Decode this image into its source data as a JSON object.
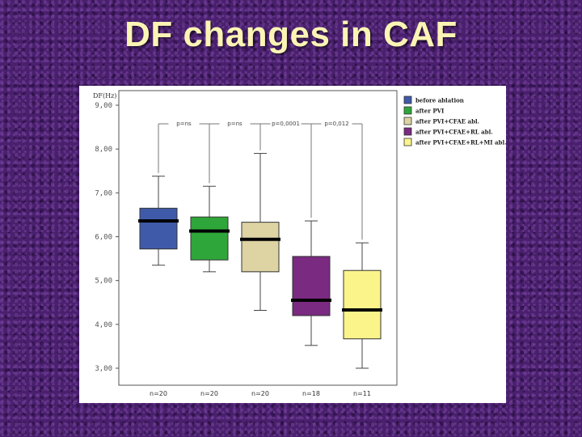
{
  "title": "DF changes in CAF",
  "colors": {
    "background": "#4a1f6e",
    "title_text": "#fbf4b4"
  },
  "chart_data": {
    "type": "boxplot",
    "ylabel": "DF(Hz)",
    "ylim": [
      3.0,
      9.0
    ],
    "yticks": [
      3.0,
      4.0,
      5.0,
      6.0,
      7.0,
      8.0,
      9.0
    ],
    "ytick_labels": [
      "3,00",
      "4,00",
      "5,00",
      "6,00",
      "7,00",
      "8,00",
      "9,00"
    ],
    "grid": false,
    "legend_position": "top-right",
    "groups": [
      {
        "name": "before ablation",
        "color": "#3f5aa8",
        "min": 5.35,
        "q1": 5.72,
        "median": 6.36,
        "q3": 6.65,
        "max": 7.38,
        "n_label": "n=20"
      },
      {
        "name": "after PVI",
        "color": "#2fa63a",
        "min": 5.2,
        "q1": 5.47,
        "median": 6.13,
        "q3": 6.45,
        "max": 7.15,
        "n_label": "n=20"
      },
      {
        "name": "after PVI+CFAE abl.",
        "color": "#ddd3a3",
        "min": 4.32,
        "q1": 5.2,
        "median": 5.94,
        "q3": 6.33,
        "max": 7.9,
        "n_label": "n=20"
      },
      {
        "name": "after PVI+CFAE+RL abl.",
        "color": "#7a2a80",
        "min": 3.52,
        "q1": 4.2,
        "median": 4.55,
        "q3": 5.55,
        "max": 6.36,
        "n_label": "n=18"
      },
      {
        "name": "after PVI+CFAE+RL+MI abl.",
        "color": "#fbf48a",
        "min": 3.0,
        "q1": 3.67,
        "median": 4.33,
        "q3": 5.23,
        "max": 5.86,
        "n_label": "n=11"
      }
    ],
    "comparisons": [
      "p=ns",
      "p=ns",
      "p=0,0001",
      "p=0,012"
    ]
  }
}
